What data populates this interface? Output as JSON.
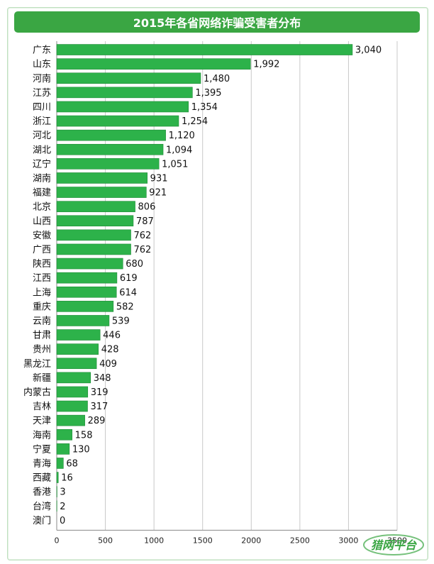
{
  "chart_data": {
    "type": "bar",
    "orientation": "horizontal",
    "title": "2015年各省网络诈骗受害者分布",
    "categories": [
      "广东",
      "山东",
      "河南",
      "江苏",
      "四川",
      "浙江",
      "河北",
      "湖北",
      "辽宁",
      "湖南",
      "福建",
      "北京",
      "山西",
      "安徽",
      "广西",
      "陕西",
      "江西",
      "上海",
      "重庆",
      "云南",
      "甘肃",
      "贵州",
      "黑龙江",
      "新疆",
      "内蒙古",
      "吉林",
      "天津",
      "海南",
      "宁夏",
      "青海",
      "西藏",
      "香港",
      "台湾",
      "澳门"
    ],
    "values": [
      3040,
      1992,
      1480,
      1395,
      1354,
      1254,
      1120,
      1094,
      1051,
      931,
      921,
      806,
      787,
      762,
      762,
      680,
      619,
      614,
      582,
      539,
      446,
      428,
      409,
      348,
      319,
      317,
      289,
      158,
      130,
      68,
      16,
      3,
      2,
      0
    ],
    "value_labels": [
      "3,040",
      "1,992",
      "1,480",
      "1,395",
      "1,354",
      "1,254",
      "1,120",
      "1,094",
      "1,051",
      "931",
      "921",
      "806",
      "787",
      "762",
      "762",
      "680",
      "619",
      "614",
      "582",
      "539",
      "446",
      "428",
      "409",
      "348",
      "319",
      "317",
      "289",
      "158",
      "130",
      "68",
      "16",
      "3",
      "2",
      "0"
    ],
    "xlim": [
      0,
      3500
    ],
    "xticks": [
      "0",
      "500",
      "1000",
      "1500",
      "2000",
      "2500",
      "3000",
      "3500"
    ],
    "grid": true,
    "colors": {
      "bar": "#2db24a",
      "bar_border": "#1f8a37",
      "title_bg": "#3aa643",
      "title_text": "#ffffff",
      "grid": "#c8c8c8"
    }
  },
  "watermark": {
    "text": "猎网平台",
    "color": "#3aa643"
  }
}
